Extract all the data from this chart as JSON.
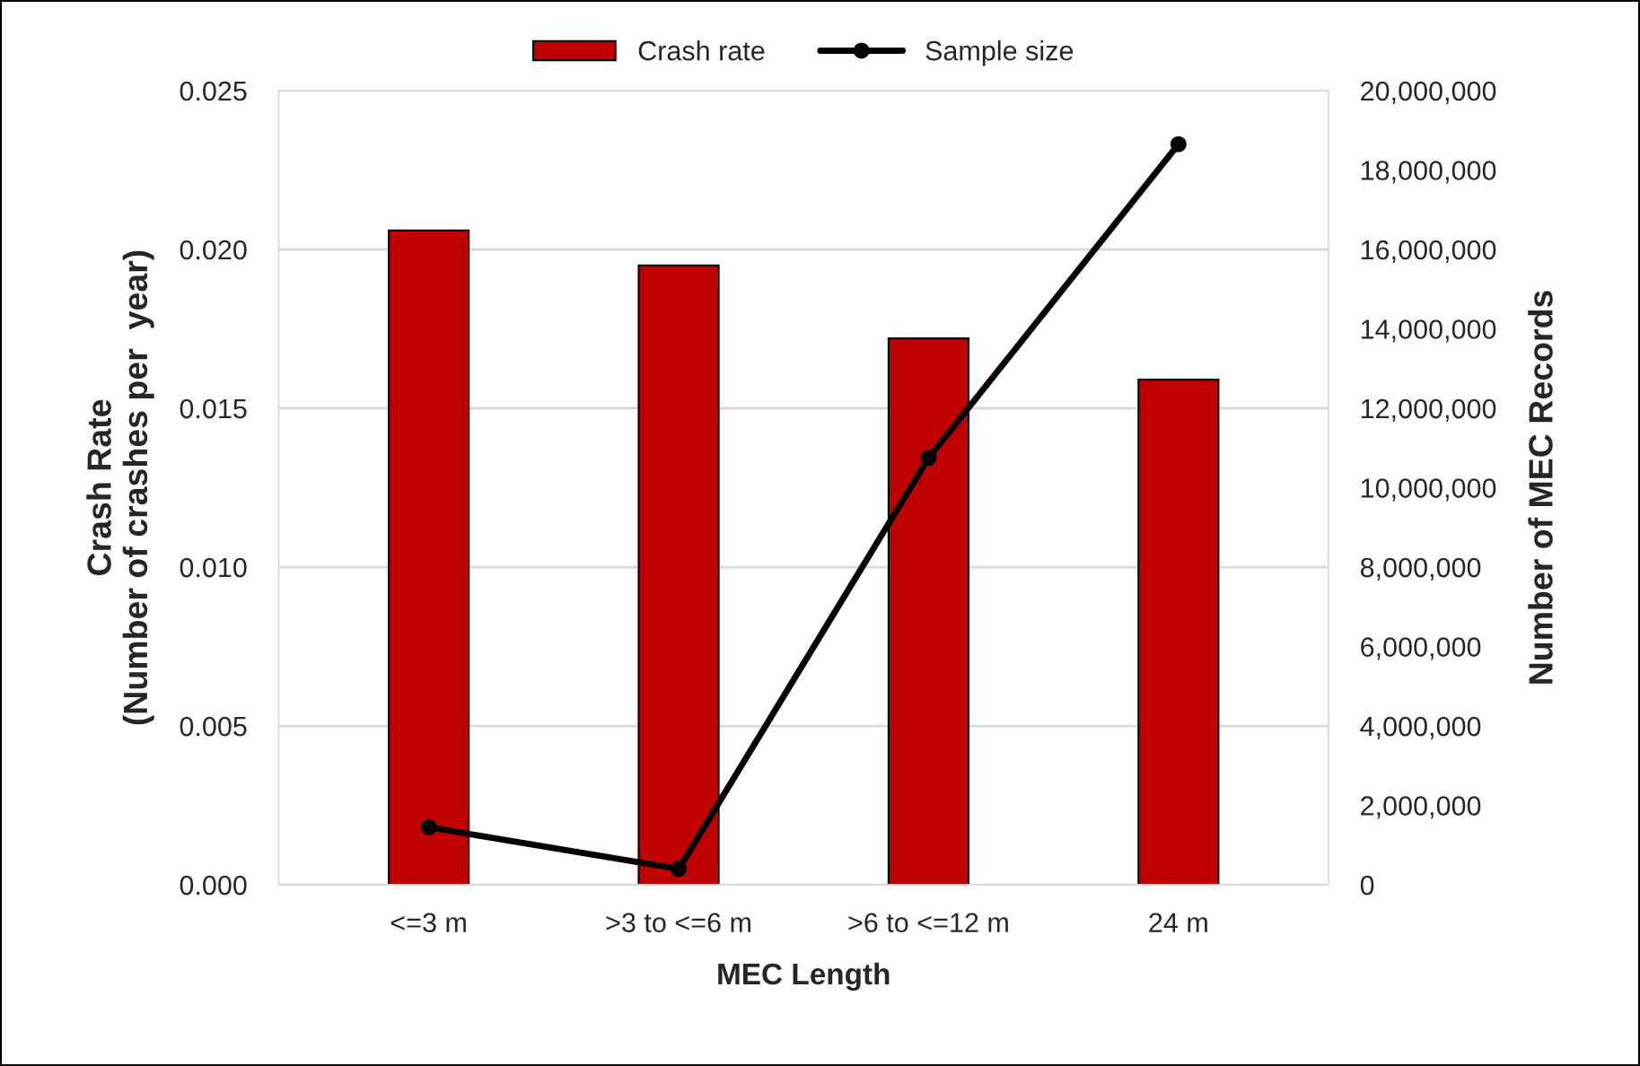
{
  "chart_data": {
    "type": "bar",
    "xlabel": "MEC Length",
    "ylabel": "Crash Rate\n(Number of crashes per  year)",
    "y2label": "Number of MEC Records",
    "categories": [
      "<=3 m",
      ">3 to <=6 m",
      ">6 to <=12 m",
      "24 m"
    ],
    "series": [
      {
        "name": "Crash rate",
        "color": "#c00000",
        "values": [
          0.0206,
          0.0195,
          0.0172,
          0.0159
        ]
      },
      {
        "name": "Sample size",
        "type": "line",
        "axis": "y2",
        "color": "#000000",
        "marker": "circle",
        "line_style": "solid",
        "values": [
          1450000,
          400000,
          10750000,
          18650000
        ]
      }
    ],
    "ylim": [
      0,
      0.025
    ],
    "yticks": [
      {
        "value": 0,
        "label": "0.000"
      },
      {
        "value": 0.005,
        "label": "0.005"
      },
      {
        "value": 0.01,
        "label": "0.010"
      },
      {
        "value": 0.015,
        "label": "0.015"
      },
      {
        "value": 0.02,
        "label": "0.020"
      },
      {
        "value": 0.025,
        "label": "0.025"
      }
    ],
    "y2lim": [
      0,
      20000000
    ],
    "y2ticks": [
      0,
      {
        "value": 2000000,
        "label": "2,000,000"
      },
      {
        "value": 4000000,
        "label": "4,000,000"
      },
      {
        "value": 6000000,
        "label": "6,000,000"
      },
      {
        "value": 8000000,
        "label": "8,000,000"
      },
      {
        "value": 10000000,
        "label": "10,000,000"
      },
      {
        "value": 12000000,
        "label": "12,000,000"
      },
      {
        "value": 14000000,
        "label": "14,000,000"
      },
      {
        "value": 16000000,
        "label": "16,000,000"
      },
      {
        "value": 18000000,
        "label": "18,000,000"
      },
      {
        "value": 20000000,
        "label": "20,000,000"
      }
    ],
    "grid": "y",
    "legend": "top"
  }
}
